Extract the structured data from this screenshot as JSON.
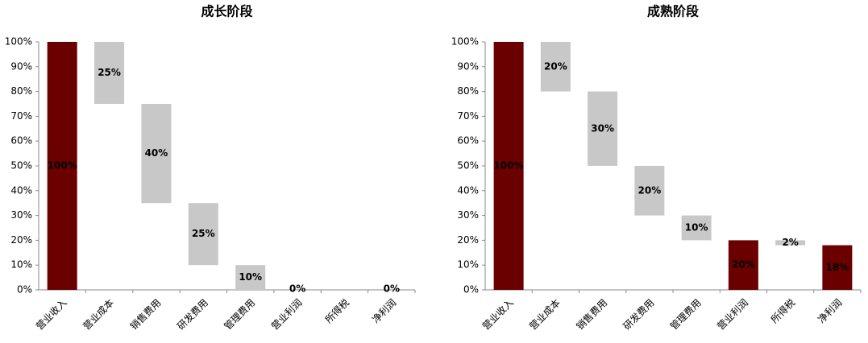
{
  "chart_data": [
    {
      "type": "waterfall",
      "title": "成长阶段",
      "categories": [
        "营业收入",
        "营业成本",
        "销售费用",
        "研发费用",
        "管理费用",
        "营业利润",
        "所得税",
        "净利润"
      ],
      "values": [
        100,
        25,
        40,
        25,
        10,
        0,
        0,
        0
      ],
      "value_labels": [
        "100%",
        "25%",
        "40%",
        "25%",
        "10%",
        "0%",
        null,
        "0%"
      ],
      "measure": [
        "total",
        "relative",
        "relative",
        "relative",
        "relative",
        "total",
        "relative",
        "total"
      ],
      "total_color": "#6b0000",
      "relative_color": "#c8c8c8",
      "ylim": [
        0,
        100
      ],
      "yticks": [
        {
          "value": 0,
          "label": "0%"
        },
        {
          "value": 10,
          "label": "10%"
        },
        {
          "value": 20,
          "label": "20%"
        },
        {
          "value": 30,
          "label": "30%"
        },
        {
          "value": 40,
          "label": "40%"
        },
        {
          "value": 50,
          "label": "50%"
        },
        {
          "value": 60,
          "label": "60%"
        },
        {
          "value": 70,
          "label": "70%"
        },
        {
          "value": 80,
          "label": "80%"
        },
        {
          "value": 90,
          "label": "90%"
        },
        {
          "value": 100,
          "label": "100%"
        }
      ]
    },
    {
      "type": "waterfall",
      "title": "成熟阶段",
      "categories": [
        "营业收入",
        "营业成本",
        "销售费用",
        "研发费用",
        "管理费用",
        "营业利润",
        "所得税",
        "净利润"
      ],
      "values": [
        100,
        20,
        30,
        20,
        10,
        20,
        2,
        18
      ],
      "value_labels": [
        "100%",
        "20%",
        "30%",
        "20%",
        "10%",
        "20%",
        "2%",
        "18%"
      ],
      "measure": [
        "total",
        "relative",
        "relative",
        "relative",
        "relative",
        "total",
        "relative",
        "total"
      ],
      "total_color": "#6b0000",
      "relative_color": "#c8c8c8",
      "ylim": [
        0,
        100
      ],
      "yticks": [
        {
          "value": 0,
          "label": "0%"
        },
        {
          "value": 10,
          "label": "10%"
        },
        {
          "value": 20,
          "label": "20%"
        },
        {
          "value": 30,
          "label": "30%"
        },
        {
          "value": 40,
          "label": "40%"
        },
        {
          "value": 50,
          "label": "50%"
        },
        {
          "value": 60,
          "label": "60%"
        },
        {
          "value": 70,
          "label": "70%"
        },
        {
          "value": 80,
          "label": "80%"
        },
        {
          "value": 90,
          "label": "90%"
        },
        {
          "value": 100,
          "label": "100%"
        }
      ]
    }
  ]
}
